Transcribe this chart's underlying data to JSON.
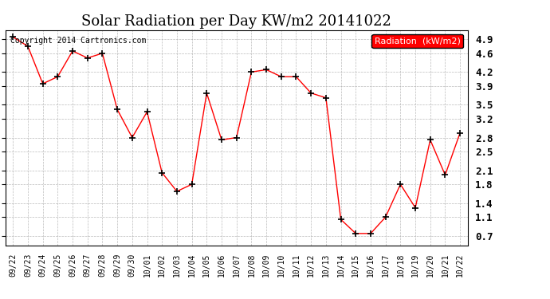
{
  "title": "Solar Radiation per Day KW/m2 20141022",
  "copyright": "Copyright 2014 Cartronics.com",
  "legend_label": "Radiation  (kW/m2)",
  "x_labels": [
    "09/22",
    "09/23",
    "09/24",
    "09/25",
    "09/26",
    "09/27",
    "09/28",
    "09/29",
    "09/30",
    "10/01",
    "10/02",
    "10/03",
    "10/04",
    "10/05",
    "10/06",
    "10/07",
    "10/08",
    "10/09",
    "10/10",
    "10/11",
    "10/12",
    "10/13",
    "10/14",
    "10/15",
    "10/16",
    "10/17",
    "10/18",
    "10/19",
    "10/20",
    "10/21",
    "10/22"
  ],
  "values": [
    4.95,
    4.75,
    3.95,
    4.1,
    4.65,
    4.5,
    4.6,
    3.4,
    2.8,
    3.35,
    2.05,
    1.65,
    1.8,
    3.75,
    2.75,
    2.8,
    4.2,
    4.25,
    4.1,
    4.1,
    3.75,
    3.65,
    1.05,
    0.75,
    0.75,
    1.1,
    1.8,
    1.3,
    2.75,
    2.0,
    2.9
  ],
  "line_color": "red",
  "bg_color": "white",
  "grid_color": "#aaaaaa",
  "ylim": [
    0.5,
    5.1
  ],
  "yticks": [
    0.7,
    1.1,
    1.4,
    1.8,
    2.1,
    2.5,
    2.8,
    3.2,
    3.5,
    3.9,
    4.2,
    4.6,
    4.9
  ],
  "ytick_labels": [
    "0.7",
    "1.1",
    "1.4",
    "1.8",
    "2.1",
    "2.5",
    "2.8",
    "3.2",
    "3.5",
    "3.9",
    "4.2",
    "4.6",
    "4.9"
  ],
  "title_fontsize": 13,
  "legend_bg_color": "red",
  "legend_text_color": "white"
}
